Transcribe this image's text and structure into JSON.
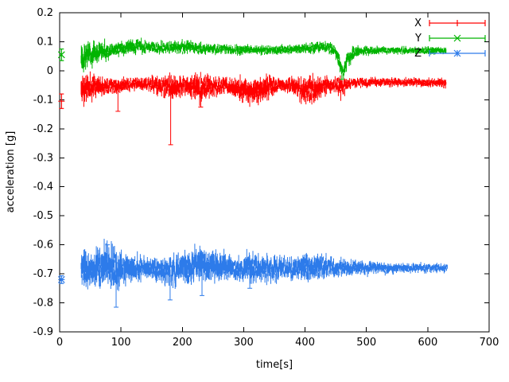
{
  "chart_data": {
    "type": "line",
    "title": "",
    "xlabel": "time[s]",
    "ylabel": "acceleration [g]",
    "xlim": [
      0,
      700
    ],
    "ylim": [
      -0.9,
      0.2
    ],
    "grid": false,
    "legend_position": "top-right-inside",
    "background": "#ffffff",
    "x_ticks": [
      0,
      100,
      200,
      300,
      400,
      500,
      600,
      700
    ],
    "x_tick_labels": [
      "0",
      "100",
      "200",
      "300",
      "400",
      "500",
      "600",
      "700"
    ],
    "y_ticks": [
      0.2,
      0.1,
      0,
      -0.1,
      -0.2,
      -0.3,
      -0.4,
      -0.5,
      -0.6,
      -0.7,
      -0.8,
      -0.9
    ],
    "y_tick_labels": [
      "0.2",
      "0.1",
      "0",
      "-0.1",
      "-0.2",
      "-0.3",
      "-0.4",
      "-0.5",
      "-0.6",
      "-0.7",
      "-0.8",
      "-0.9"
    ],
    "series": [
      {
        "name": "X",
        "color": "#ff0000",
        "marker": "plus",
        "style": "yerrorbars",
        "seed": 11,
        "start_point": {
          "t": 3,
          "value": -0.105,
          "err": 0.025
        },
        "band": {
          "t0": 35,
          "t1": 630,
          "step": 0.4
        },
        "envelope": [
          [
            35,
            -0.065,
            0.045
          ],
          [
            50,
            -0.055,
            0.035
          ],
          [
            70,
            -0.05,
            0.025
          ],
          [
            100,
            -0.05,
            0.02
          ],
          [
            130,
            -0.045,
            0.018
          ],
          [
            160,
            -0.05,
            0.025
          ],
          [
            185,
            -0.06,
            0.035
          ],
          [
            205,
            -0.05,
            0.025
          ],
          [
            225,
            -0.06,
            0.038
          ],
          [
            250,
            -0.055,
            0.03
          ],
          [
            270,
            -0.05,
            0.02
          ],
          [
            295,
            -0.065,
            0.035
          ],
          [
            315,
            -0.07,
            0.038
          ],
          [
            335,
            -0.06,
            0.035
          ],
          [
            355,
            -0.05,
            0.022
          ],
          [
            375,
            -0.05,
            0.02
          ],
          [
            395,
            -0.065,
            0.035
          ],
          [
            415,
            -0.07,
            0.035
          ],
          [
            435,
            -0.05,
            0.025
          ],
          [
            448,
            -0.045,
            0.018
          ],
          [
            458,
            -0.06,
            0.03
          ],
          [
            468,
            -0.045,
            0.018
          ],
          [
            480,
            -0.042,
            0.014
          ],
          [
            520,
            -0.04,
            0.012
          ],
          [
            570,
            -0.04,
            0.012
          ],
          [
            630,
            -0.042,
            0.014
          ]
        ],
        "spikes": [
          [
            181,
            -0.255
          ],
          [
            95,
            -0.14
          ],
          [
            230,
            -0.125
          ]
        ]
      },
      {
        "name": "Y",
        "color": "#00b400",
        "marker": "cross",
        "style": "yerrorbars",
        "seed": 22,
        "start_point": {
          "t": 3,
          "value": 0.055,
          "err": 0.02
        },
        "band": {
          "t0": 35,
          "t1": 630,
          "step": 0.4
        },
        "envelope": [
          [
            35,
            0.055,
            0.045
          ],
          [
            50,
            0.06,
            0.035
          ],
          [
            65,
            0.065,
            0.028
          ],
          [
            85,
            0.07,
            0.02
          ],
          [
            110,
            0.08,
            0.02
          ],
          [
            135,
            0.085,
            0.018
          ],
          [
            160,
            0.078,
            0.015
          ],
          [
            185,
            0.08,
            0.018
          ],
          [
            210,
            0.082,
            0.018
          ],
          [
            235,
            0.075,
            0.015
          ],
          [
            265,
            0.075,
            0.013
          ],
          [
            300,
            0.072,
            0.014
          ],
          [
            330,
            0.07,
            0.014
          ],
          [
            360,
            0.073,
            0.012
          ],
          [
            390,
            0.075,
            0.013
          ],
          [
            415,
            0.08,
            0.015
          ],
          [
            435,
            0.082,
            0.015
          ],
          [
            448,
            0.075,
            0.015
          ],
          [
            456,
            0.03,
            0.025
          ],
          [
            462,
            -0.012,
            0.015
          ],
          [
            469,
            0.04,
            0.025
          ],
          [
            478,
            0.062,
            0.018
          ],
          [
            490,
            0.068,
            0.013
          ],
          [
            530,
            0.07,
            0.011
          ],
          [
            580,
            0.07,
            0.01
          ],
          [
            630,
            0.07,
            0.011
          ]
        ],
        "spikes": [
          [
            460,
            -0.03
          ]
        ]
      },
      {
        "name": "Z",
        "color": "#2d7bea",
        "marker": "asterisk",
        "style": "yerrorbars",
        "seed": 33,
        "start_point": {
          "t": 3,
          "value": -0.72,
          "err": 0.013
        },
        "band": {
          "t0": 35,
          "t1": 632,
          "step": 0.4
        },
        "envelope": [
          [
            35,
            -0.69,
            0.05
          ],
          [
            55,
            -0.685,
            0.055
          ],
          [
            75,
            -0.68,
            0.06
          ],
          [
            95,
            -0.68,
            0.055
          ],
          [
            115,
            -0.68,
            0.04
          ],
          [
            140,
            -0.68,
            0.03
          ],
          [
            165,
            -0.685,
            0.035
          ],
          [
            185,
            -0.69,
            0.045
          ],
          [
            205,
            -0.675,
            0.045
          ],
          [
            225,
            -0.67,
            0.05
          ],
          [
            245,
            -0.67,
            0.048
          ],
          [
            265,
            -0.675,
            0.04
          ],
          [
            290,
            -0.68,
            0.032
          ],
          [
            310,
            -0.68,
            0.042
          ],
          [
            330,
            -0.685,
            0.035
          ],
          [
            350,
            -0.68,
            0.035
          ],
          [
            370,
            -0.68,
            0.03
          ],
          [
            390,
            -0.68,
            0.035
          ],
          [
            410,
            -0.678,
            0.038
          ],
          [
            430,
            -0.675,
            0.035
          ],
          [
            450,
            -0.68,
            0.025
          ],
          [
            475,
            -0.68,
            0.022
          ],
          [
            510,
            -0.68,
            0.018
          ],
          [
            550,
            -0.682,
            0.015
          ],
          [
            590,
            -0.68,
            0.013
          ],
          [
            632,
            -0.68,
            0.012
          ]
        ],
        "spikes": [
          [
            92,
            -0.815
          ],
          [
            78,
            -0.6
          ],
          [
            180,
            -0.79
          ],
          [
            232,
            -0.775
          ],
          [
            310,
            -0.75
          ]
        ]
      }
    ]
  }
}
